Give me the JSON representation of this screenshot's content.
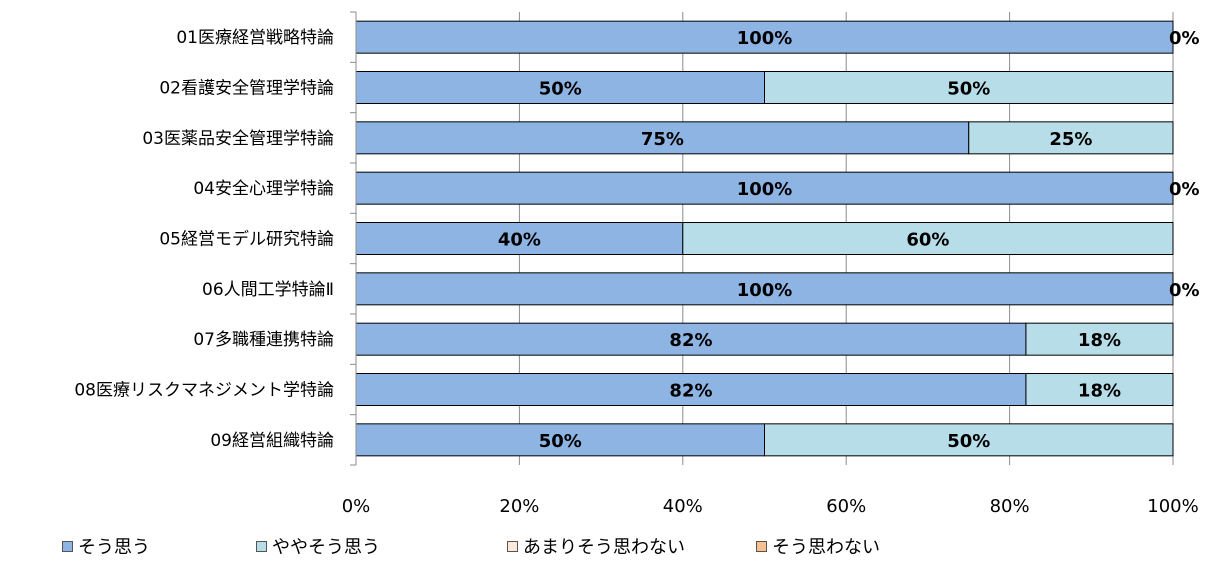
{
  "chart_data": {
    "type": "bar",
    "orientation": "horizontal",
    "stacked": "percent",
    "categories": [
      "01医療経営戦略特論",
      "02看護安全管理学特論",
      "03医薬品安全管理学特論",
      "04安全心理学特論",
      "05経営モデル研究特論",
      "06人間工学特論Ⅱ",
      "07多職種連携特論",
      "08医療リスクマネジメント学特論",
      "09経営組織特論"
    ],
    "series": [
      {
        "name": "そう思う",
        "color": "#8EB4E3",
        "values": [
          100,
          50,
          75,
          100,
          40,
          100,
          82,
          82,
          50
        ],
        "labels": [
          "100%",
          "50%",
          "75%",
          "100%",
          "40%",
          "100%",
          "82%",
          "82%",
          "50%"
        ]
      },
      {
        "name": "ややそう思う",
        "color": "#B7DEE8",
        "values": [
          0,
          50,
          25,
          0,
          60,
          0,
          18,
          18,
          50
        ],
        "labels": [
          "0%",
          "50%",
          "25%",
          "0%",
          "60%",
          "0%",
          "18%",
          "18%",
          "50%"
        ]
      },
      {
        "name": "あまりそう思わない",
        "color": "#FDE9D9",
        "values": [
          0,
          0,
          0,
          0,
          0,
          0,
          0,
          0,
          0
        ]
      },
      {
        "name": "そう思わない",
        "color": "#FAC090",
        "values": [
          0,
          0,
          0,
          0,
          0,
          0,
          0,
          0,
          0
        ]
      }
    ],
    "xlim": [
      0,
      100
    ],
    "xticks": [
      "0%",
      "20%",
      "40%",
      "60%",
      "80%",
      "100%"
    ],
    "grid": true,
    "legend": "bottom"
  }
}
